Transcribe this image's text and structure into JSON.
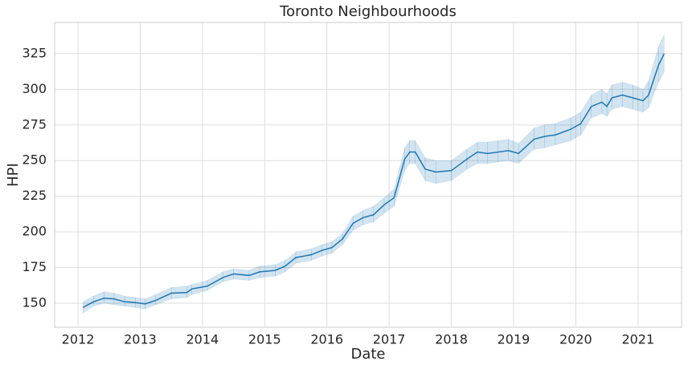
{
  "chart_data": {
    "type": "line",
    "title": "Toronto Neighbourhoods",
    "x_label": "Date",
    "y_label": "HPI",
    "x": [
      2012.08,
      2012.25,
      2012.42,
      2012.58,
      2012.75,
      2012.92,
      2013.08,
      2013.25,
      2013.5,
      2013.75,
      2013.83,
      2014.08,
      2014.33,
      2014.5,
      2014.75,
      2014.92,
      2015.17,
      2015.33,
      2015.5,
      2015.75,
      2015.92,
      2016.08,
      2016.25,
      2016.42,
      2016.58,
      2016.75,
      2016.92,
      2017.08,
      2017.25,
      2017.33,
      2017.42,
      2017.58,
      2017.75,
      2018.0,
      2018.25,
      2018.42,
      2018.58,
      2018.75,
      2018.92,
      2019.08,
      2019.33,
      2019.5,
      2019.67,
      2019.92,
      2020.08,
      2020.25,
      2020.42,
      2020.5,
      2020.58,
      2020.75,
      2020.92,
      2021.08,
      2021.17,
      2021.33,
      2021.42
    ],
    "values": [
      147,
      151,
      153.5,
      153,
      151,
      150.5,
      149.5,
      152,
      157,
      157.5,
      160,
      162,
      168,
      170.5,
      169.5,
      172,
      173,
      176,
      182,
      184,
      187,
      189,
      195,
      206,
      210,
      212,
      219,
      224,
      251,
      256,
      256,
      244,
      242,
      243,
      251,
      256,
      255,
      256,
      257,
      255,
      265,
      267,
      268,
      272,
      276,
      288,
      291,
      288,
      294,
      296,
      294,
      292,
      296,
      317,
      325
    ],
    "lower": [
      143,
      148,
      150,
      149,
      148,
      147,
      146,
      149,
      153,
      154,
      156,
      159,
      165,
      167,
      166,
      168,
      169,
      172,
      178,
      180,
      183,
      185,
      191,
      201,
      205,
      207,
      213,
      218,
      243,
      248,
      248,
      236,
      234,
      236,
      244,
      248,
      248,
      249,
      250,
      248,
      258,
      259,
      261,
      264,
      268,
      280,
      283,
      281,
      286,
      288,
      286,
      284,
      287,
      305,
      312
    ],
    "upper": [
      151,
      155,
      158,
      157,
      155,
      154,
      153,
      156,
      161,
      162,
      163,
      166,
      172,
      174,
      173,
      176,
      177,
      180,
      186,
      188,
      191,
      193,
      199,
      211,
      215,
      218,
      224,
      230,
      259,
      264,
      264,
      252,
      250,
      250,
      258,
      263,
      263,
      264,
      265,
      262,
      273,
      275,
      276,
      280,
      284,
      296,
      300,
      297,
      303,
      305,
      303,
      300,
      306,
      330,
      338
    ],
    "color": "#1f77b4",
    "band_color": "#1f77b4",
    "xlim": [
      2011.625,
      2021.7
    ],
    "xticks": [
      2012,
      2013,
      2014,
      2015,
      2016,
      2017,
      2018,
      2019,
      2020,
      2021
    ],
    "ylim": [
      133.1,
      346.9
    ],
    "yticks": [
      150,
      175,
      200,
      225,
      250,
      275,
      300,
      325
    ],
    "grid": true
  }
}
